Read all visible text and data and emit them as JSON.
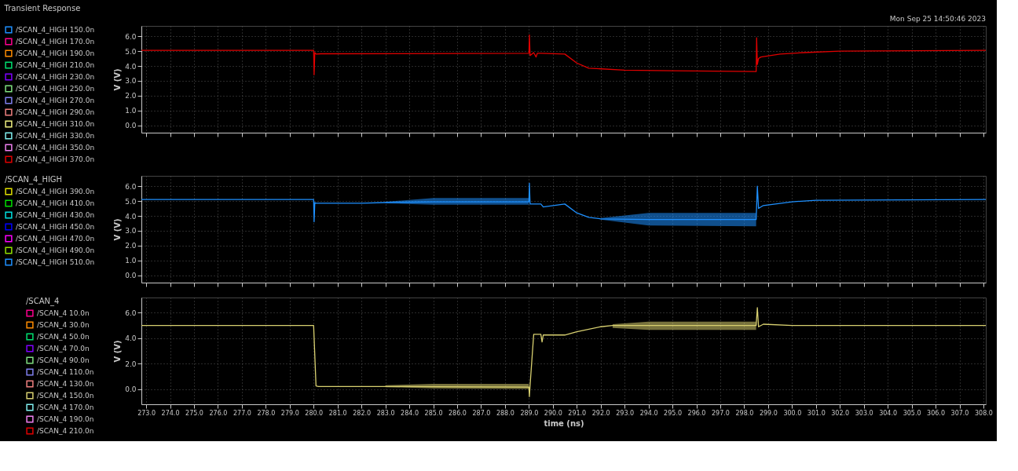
{
  "chart_data": [
    {
      "type": "line",
      "title": "Transient Response",
      "annotations": [
        "Mon Sep 25 14:50:46 2023"
      ],
      "ylabel": "V (V)",
      "tick_labels": "y",
      "grid": true,
      "legend": "left",
      "line_style": "solid",
      "xlim": [
        272.8,
        308.1
      ],
      "xticks": [
        {
          "value": 273,
          "label": null
        },
        {
          "value": 274,
          "label": null
        },
        {
          "value": 275,
          "label": null
        },
        {
          "value": 276,
          "label": null
        },
        {
          "value": 277,
          "label": null
        },
        {
          "value": 278,
          "label": null
        },
        {
          "value": 279,
          "label": null
        },
        {
          "value": 280,
          "label": null
        },
        {
          "value": 281,
          "label": null
        },
        {
          "value": 282,
          "label": null
        },
        {
          "value": 283,
          "label": null
        },
        {
          "value": 284,
          "label": null
        },
        {
          "value": 285,
          "label": null
        },
        {
          "value": 286,
          "label": null
        },
        {
          "value": 287,
          "label": null
        },
        {
          "value": 288,
          "label": null
        },
        {
          "value": 289,
          "label": null
        },
        {
          "value": 290,
          "label": null
        },
        {
          "value": 291,
          "label": null
        },
        {
          "value": 292,
          "label": null
        },
        {
          "value": 293,
          "label": null
        },
        {
          "value": 294,
          "label": null
        },
        {
          "value": 295,
          "label": null
        },
        {
          "value": 296,
          "label": null
        },
        {
          "value": 297,
          "label": null
        },
        {
          "value": 298,
          "label": null
        },
        {
          "value": 299,
          "label": null
        },
        {
          "value": 300,
          "label": null
        },
        {
          "value": 301,
          "label": null
        },
        {
          "value": 302,
          "label": null
        },
        {
          "value": 303,
          "label": null
        },
        {
          "value": 304,
          "label": null
        },
        {
          "value": 305,
          "label": null
        },
        {
          "value": 306,
          "label": null
        },
        {
          "value": 307,
          "label": null
        },
        {
          "value": 308,
          "label": null
        }
      ],
      "ylim": [
        -0.5,
        6.7
      ],
      "yticks": [
        {
          "value": 0,
          "label": "0.0"
        },
        {
          "value": 1,
          "label": "1.0"
        },
        {
          "value": 2,
          "label": "2.0"
        },
        {
          "value": 3,
          "label": "3.0"
        },
        {
          "value": 4,
          "label": "4.0"
        },
        {
          "value": 5,
          "label": "5.0"
        },
        {
          "value": 6,
          "label": "6.0"
        }
      ],
      "x": [
        272.8,
        280.0,
        280.02,
        280.05,
        280.1,
        280.3,
        289.0,
        289.02,
        289.05,
        289.2,
        289.3,
        289.35,
        289.5,
        290.5,
        291.0,
        291.5,
        293.0,
        295.0,
        298.5,
        298.52,
        298.55,
        298.6,
        298.7,
        299.5,
        300.5,
        302.0,
        308.1
      ],
      "series": [
        {
          "name": "/SCAN_4_HIGH   150.0n",
          "color": "#1e90ff",
          "values": [
            null,
            null,
            null,
            null,
            null,
            null,
            null,
            null,
            null,
            null,
            null,
            null,
            null,
            null,
            null,
            null,
            null,
            null,
            null,
            null,
            null,
            null,
            null,
            null,
            null,
            null,
            null
          ]
        },
        {
          "name": "/SCAN_4_HIGH   170.0n",
          "color": "#ff0090",
          "values": [
            null,
            null,
            null,
            null,
            null,
            null,
            null,
            null,
            null,
            null,
            null,
            null,
            null,
            null,
            null,
            null,
            null,
            null,
            null,
            null,
            null,
            null,
            null,
            null,
            null,
            null,
            null
          ]
        },
        {
          "name": "/SCAN_4_HIGH   190.0n",
          "color": "#ff8c00",
          "values": [
            null,
            null,
            null,
            null,
            null,
            null,
            null,
            null,
            null,
            null,
            null,
            null,
            null,
            null,
            null,
            null,
            null,
            null,
            null,
            null,
            null,
            null,
            null,
            null,
            null,
            null,
            null
          ]
        },
        {
          "name": "/SCAN_4_HIGH   210.0n",
          "color": "#00e070",
          "values": [
            null,
            null,
            null,
            null,
            null,
            null,
            null,
            null,
            null,
            null,
            null,
            null,
            null,
            null,
            null,
            null,
            null,
            null,
            null,
            null,
            null,
            null,
            null,
            null,
            null,
            null,
            null
          ]
        },
        {
          "name": "/SCAN_4_HIGH   230.0n",
          "color": "#8000ff",
          "values": [
            null,
            null,
            null,
            null,
            null,
            null,
            null,
            null,
            null,
            null,
            null,
            null,
            null,
            null,
            null,
            null,
            null,
            null,
            null,
            null,
            null,
            null,
            null,
            null,
            null,
            null,
            null
          ]
        },
        {
          "name": "/SCAN_4_HIGH   250.0n",
          "color": "#80e080",
          "values": [
            null,
            null,
            null,
            null,
            null,
            null,
            null,
            null,
            null,
            null,
            null,
            null,
            null,
            null,
            null,
            null,
            null,
            null,
            null,
            null,
            null,
            null,
            null,
            null,
            null,
            null,
            null
          ]
        },
        {
          "name": "/SCAN_4_HIGH   270.0n",
          "color": "#8080f0",
          "values": [
            null,
            null,
            null,
            null,
            null,
            null,
            null,
            null,
            null,
            null,
            null,
            null,
            null,
            null,
            null,
            null,
            null,
            null,
            null,
            null,
            null,
            null,
            null,
            null,
            null,
            null,
            null
          ]
        },
        {
          "name": "/SCAN_4_HIGH   290.0n",
          "color": "#f08080",
          "values": [
            null,
            null,
            null,
            null,
            null,
            null,
            null,
            null,
            null,
            null,
            null,
            null,
            null,
            null,
            null,
            null,
            null,
            null,
            null,
            null,
            null,
            null,
            null,
            null,
            null,
            null,
            null
          ]
        },
        {
          "name": "/SCAN_4_HIGH   310.0n",
          "color": "#f0f080",
          "values": [
            null,
            null,
            null,
            null,
            null,
            null,
            null,
            null,
            null,
            null,
            null,
            null,
            null,
            null,
            null,
            null,
            null,
            null,
            null,
            null,
            null,
            null,
            null,
            null,
            null,
            null,
            null
          ]
        },
        {
          "name": "/SCAN_4_HIGH   330.0n",
          "color": "#80f0f0",
          "values": [
            null,
            null,
            null,
            null,
            null,
            null,
            null,
            null,
            null,
            null,
            null,
            null,
            null,
            null,
            null,
            null,
            null,
            null,
            null,
            null,
            null,
            null,
            null,
            null,
            null,
            null,
            null
          ]
        },
        {
          "name": "/SCAN_4_HIGH   350.0n",
          "color": "#f080f0",
          "values": [
            null,
            null,
            null,
            null,
            null,
            null,
            null,
            null,
            null,
            null,
            null,
            null,
            null,
            null,
            null,
            null,
            null,
            null,
            null,
            null,
            null,
            null,
            null,
            null,
            null,
            null,
            null
          ]
        },
        {
          "name": "/SCAN_4_HIGH   370.0n",
          "color": "#e00000",
          "values": [
            5.05,
            5.05,
            3.4,
            4.9,
            4.8,
            4.82,
            4.85,
            6.1,
            4.7,
            4.9,
            4.6,
            4.85,
            4.85,
            4.8,
            4.2,
            3.85,
            3.72,
            3.68,
            3.62,
            5.9,
            4.1,
            4.5,
            4.6,
            4.8,
            4.9,
            5.0,
            5.05
          ]
        }
      ]
    },
    {
      "type": "line",
      "ylabel": "V (V)",
      "legend_title": "/SCAN_4_HIGH",
      "tick_labels": "y",
      "grid": true,
      "legend": "left",
      "line_style": "solid",
      "xlim": [
        272.8,
        308.1
      ],
      "xticks": [
        {
          "value": 273,
          "label": null
        },
        {
          "value": 274,
          "label": null
        },
        {
          "value": 275,
          "label": null
        },
        {
          "value": 276,
          "label": null
        },
        {
          "value": 277,
          "label": null
        },
        {
          "value": 278,
          "label": null
        },
        {
          "value": 279,
          "label": null
        },
        {
          "value": 280,
          "label": null
        },
        {
          "value": 281,
          "label": null
        },
        {
          "value": 282,
          "label": null
        },
        {
          "value": 283,
          "label": null
        },
        {
          "value": 284,
          "label": null
        },
        {
          "value": 285,
          "label": null
        },
        {
          "value": 286,
          "label": null
        },
        {
          "value": 287,
          "label": null
        },
        {
          "value": 288,
          "label": null
        },
        {
          "value": 289,
          "label": null
        },
        {
          "value": 290,
          "label": null
        },
        {
          "value": 291,
          "label": null
        },
        {
          "value": 292,
          "label": null
        },
        {
          "value": 293,
          "label": null
        },
        {
          "value": 294,
          "label": null
        },
        {
          "value": 295,
          "label": null
        },
        {
          "value": 296,
          "label": null
        },
        {
          "value": 297,
          "label": null
        },
        {
          "value": 298,
          "label": null
        },
        {
          "value": 299,
          "label": null
        },
        {
          "value": 300,
          "label": null
        },
        {
          "value": 301,
          "label": null
        },
        {
          "value": 302,
          "label": null
        },
        {
          "value": 303,
          "label": null
        },
        {
          "value": 304,
          "label": null
        },
        {
          "value": 305,
          "label": null
        },
        {
          "value": 306,
          "label": null
        },
        {
          "value": 307,
          "label": null
        },
        {
          "value": 308,
          "label": null
        }
      ],
      "ylim": [
        -0.5,
        6.7
      ],
      "yticks": [
        {
          "value": 0,
          "label": "0.0"
        },
        {
          "value": 1,
          "label": "1.0"
        },
        {
          "value": 2,
          "label": "2.0"
        },
        {
          "value": 3,
          "label": "3.0"
        },
        {
          "value": 4,
          "label": "4.0"
        },
        {
          "value": 5,
          "label": "5.0"
        },
        {
          "value": 6,
          "label": "6.0"
        }
      ],
      "x": [
        272.8,
        280.0,
        280.02,
        280.05,
        280.1,
        282.0,
        283.0,
        285.0,
        289.0,
        289.02,
        289.05,
        289.5,
        289.6,
        290.5,
        291.0,
        291.5,
        292.0,
        294.0,
        298.5,
        298.55,
        298.6,
        298.8,
        300.0,
        301.0,
        308.1
      ],
      "series": [
        {
          "name": "/SCAN_4_HIGH   390.0n",
          "color": "#e0e000",
          "values": [
            null,
            null,
            null,
            null,
            null,
            null,
            null,
            null,
            null,
            null,
            null,
            null,
            null,
            null,
            null,
            null,
            null,
            null,
            null,
            null,
            null,
            null,
            null,
            null,
            null
          ]
        },
        {
          "name": "/SCAN_4_HIGH   410.0n",
          "color": "#00e000",
          "values": [
            null,
            null,
            null,
            null,
            null,
            null,
            null,
            null,
            null,
            null,
            null,
            null,
            null,
            null,
            null,
            null,
            null,
            null,
            null,
            null,
            null,
            null,
            null,
            null,
            null
          ]
        },
        {
          "name": "/SCAN_4_HIGH   430.0n",
          "color": "#00e0e0",
          "values": [
            null,
            null,
            null,
            null,
            null,
            null,
            null,
            null,
            null,
            null,
            null,
            null,
            null,
            null,
            null,
            null,
            null,
            null,
            null,
            null,
            null,
            null,
            null,
            null,
            null
          ]
        },
        {
          "name": "/SCAN_4_HIGH   450.0n",
          "color": "#0000ff",
          "values": [
            null,
            null,
            null,
            null,
            null,
            null,
            null,
            null,
            null,
            null,
            null,
            null,
            null,
            null,
            null,
            null,
            null,
            null,
            null,
            null,
            null,
            null,
            null,
            null,
            null
          ]
        },
        {
          "name": "/SCAN_4_HIGH   470.0n",
          "color": "#ff00ff",
          "values": [
            null,
            null,
            null,
            null,
            null,
            null,
            null,
            null,
            null,
            null,
            null,
            null,
            null,
            null,
            null,
            null,
            null,
            null,
            null,
            null,
            null,
            null,
            null,
            null,
            null
          ]
        },
        {
          "name": "/SCAN_4_HIGH   490.0n",
          "color": "#90e000",
          "values": [
            null,
            null,
            null,
            null,
            null,
            null,
            null,
            null,
            null,
            null,
            null,
            null,
            null,
            null,
            null,
            null,
            null,
            null,
            null,
            null,
            null,
            null,
            null,
            null,
            null
          ]
        },
        {
          "name": "/SCAN_4_HIGH   510.0n",
          "color": "#1e90ff",
          "values": [
            5.1,
            5.1,
            3.6,
            4.9,
            4.85,
            4.85,
            4.9,
            4.95,
            4.95,
            6.2,
            4.8,
            4.8,
            4.6,
            4.8,
            4.2,
            3.9,
            3.8,
            3.75,
            3.75,
            6.0,
            4.5,
            4.7,
            4.95,
            5.05,
            5.1
          ],
          "lower": [
            null,
            null,
            null,
            null,
            null,
            null,
            4.85,
            4.75,
            4.75,
            null,
            null,
            null,
            null,
            null,
            null,
            null,
            3.75,
            3.35,
            3.3,
            null,
            null,
            null,
            null,
            null,
            null
          ],
          "upper": [
            null,
            null,
            null,
            null,
            null,
            null,
            4.95,
            5.2,
            5.2,
            null,
            null,
            null,
            null,
            null,
            null,
            null,
            3.85,
            4.2,
            4.2,
            null,
            null,
            null,
            null,
            null,
            null
          ]
        }
      ]
    },
    {
      "type": "line",
      "ylabel": "V (V)",
      "xlabel": "time (ns)",
      "legend_title": "/SCAN_4",
      "grid": true,
      "legend": "left",
      "line_style": "solid",
      "xlim": [
        272.8,
        308.1
      ],
      "xticks": [
        {
          "value": 273,
          "label": "273.0"
        },
        {
          "value": 274,
          "label": "274.0"
        },
        {
          "value": 275,
          "label": "275.0"
        },
        {
          "value": 276,
          "label": "276.0"
        },
        {
          "value": 277,
          "label": "277.0"
        },
        {
          "value": 278,
          "label": "278.0"
        },
        {
          "value": 279,
          "label": "279.0"
        },
        {
          "value": 280,
          "label": "280.0"
        },
        {
          "value": 281,
          "label": "281.0"
        },
        {
          "value": 282,
          "label": "282.0"
        },
        {
          "value": 283,
          "label": "283.0"
        },
        {
          "value": 284,
          "label": "284.0"
        },
        {
          "value": 285,
          "label": "285.0"
        },
        {
          "value": 286,
          "label": "286.0"
        },
        {
          "value": 287,
          "label": "287.0"
        },
        {
          "value": 288,
          "label": "288.0"
        },
        {
          "value": 289,
          "label": "289.0"
        },
        {
          "value": 290,
          "label": "290.0"
        },
        {
          "value": 291,
          "label": "291.0"
        },
        {
          "value": 292,
          "label": "292.0"
        },
        {
          "value": 293,
          "label": "293.0"
        },
        {
          "value": 294,
          "label": "294.0"
        },
        {
          "value": 295,
          "label": "295.0"
        },
        {
          "value": 296,
          "label": "296.0"
        },
        {
          "value": 297,
          "label": "297.0"
        },
        {
          "value": 298,
          "label": "298.0"
        },
        {
          "value": 299,
          "label": "299.0"
        },
        {
          "value": 300,
          "label": "300.0"
        },
        {
          "value": 301,
          "label": "301.0"
        },
        {
          "value": 302,
          "label": "302.0"
        },
        {
          "value": 303,
          "label": "303.0"
        },
        {
          "value": 304,
          "label": "304.0"
        },
        {
          "value": 305,
          "label": "305.0"
        },
        {
          "value": 306,
          "label": "306.0"
        },
        {
          "value": 307,
          "label": "307.0"
        },
        {
          "value": 308,
          "label": "308.0"
        }
      ],
      "ylim": [
        -1.2,
        7.2
      ],
      "yticks": [
        {
          "value": 0,
          "label": "0.0"
        },
        {
          "value": 2,
          "label": "2.0"
        },
        {
          "value": 4,
          "label": "4.0"
        },
        {
          "value": 6,
          "label": "6.0"
        }
      ],
      "x": [
        272.8,
        280.0,
        280.1,
        280.2,
        283.0,
        285.0,
        289.0,
        289.02,
        289.05,
        289.2,
        289.5,
        289.55,
        289.6,
        290.5,
        291.0,
        292.0,
        292.5,
        294.0,
        298.5,
        298.55,
        298.6,
        298.8,
        300.0,
        308.1
      ],
      "series": [
        {
          "name": "/SCAN_4   10.0n",
          "color": "#ff0090",
          "values": [
            null,
            null,
            null,
            null,
            null,
            null,
            null,
            null,
            null,
            null,
            null,
            null,
            null,
            null,
            null,
            null,
            null,
            null,
            null,
            null,
            null,
            null,
            null,
            null
          ]
        },
        {
          "name": "/SCAN_4   30.0n",
          "color": "#ff8c00",
          "values": [
            null,
            null,
            null,
            null,
            null,
            null,
            null,
            null,
            null,
            null,
            null,
            null,
            null,
            null,
            null,
            null,
            null,
            null,
            null,
            null,
            null,
            null,
            null,
            null
          ]
        },
        {
          "name": "/SCAN_4   50.0n",
          "color": "#00e070",
          "values": [
            null,
            null,
            null,
            null,
            null,
            null,
            null,
            null,
            null,
            null,
            null,
            null,
            null,
            null,
            null,
            null,
            null,
            null,
            null,
            null,
            null,
            null,
            null,
            null
          ]
        },
        {
          "name": "/SCAN_4   70.0n",
          "color": "#8000ff",
          "values": [
            null,
            null,
            null,
            null,
            null,
            null,
            null,
            null,
            null,
            null,
            null,
            null,
            null,
            null,
            null,
            null,
            null,
            null,
            null,
            null,
            null,
            null,
            null,
            null
          ]
        },
        {
          "name": "/SCAN_4   90.0n",
          "color": "#80e080",
          "values": [
            null,
            null,
            null,
            null,
            null,
            null,
            null,
            null,
            null,
            null,
            null,
            null,
            null,
            null,
            null,
            null,
            null,
            null,
            null,
            null,
            null,
            null,
            null,
            null
          ]
        },
        {
          "name": "/SCAN_4   110.0n",
          "color": "#8080f0",
          "values": [
            null,
            null,
            null,
            null,
            null,
            null,
            null,
            null,
            null,
            null,
            null,
            null,
            null,
            null,
            null,
            null,
            null,
            null,
            null,
            null,
            null,
            null,
            null,
            null
          ]
        },
        {
          "name": "/SCAN_4   130.0n",
          "color": "#f08080",
          "values": [
            null,
            null,
            null,
            null,
            null,
            null,
            null,
            null,
            null,
            null,
            null,
            null,
            null,
            null,
            null,
            null,
            null,
            null,
            null,
            null,
            null,
            null,
            null,
            null
          ]
        },
        {
          "name": "/SCAN_4   150.0n",
          "color": "#d8d070",
          "values": [
            5.0,
            5.0,
            0.25,
            0.2,
            0.2,
            0.18,
            0.15,
            -0.6,
            0.3,
            4.3,
            4.3,
            3.7,
            4.25,
            4.25,
            4.5,
            4.9,
            5.0,
            5.0,
            5.0,
            6.4,
            4.9,
            5.1,
            5.0,
            5.0
          ],
          "lower": [
            null,
            null,
            null,
            null,
            0.15,
            0.05,
            0.0,
            null,
            null,
            null,
            null,
            null,
            null,
            null,
            null,
            null,
            4.8,
            4.65,
            4.65,
            null,
            null,
            null,
            null,
            null
          ],
          "upper": [
            null,
            null,
            null,
            null,
            0.3,
            0.4,
            0.4,
            null,
            null,
            null,
            null,
            null,
            null,
            null,
            null,
            null,
            5.1,
            5.3,
            5.3,
            null,
            null,
            null,
            null,
            null
          ]
        },
        {
          "name": "/SCAN_4   170.0n",
          "color": "#80f0f0",
          "values": [
            null,
            null,
            null,
            null,
            null,
            null,
            null,
            null,
            null,
            null,
            null,
            null,
            null,
            null,
            null,
            null,
            null,
            null,
            null,
            null,
            null,
            null,
            null,
            null
          ]
        },
        {
          "name": "/SCAN_4   190.0n",
          "color": "#f080f0",
          "values": [
            null,
            null,
            null,
            null,
            null,
            null,
            null,
            null,
            null,
            null,
            null,
            null,
            null,
            null,
            null,
            null,
            null,
            null,
            null,
            null,
            null,
            null,
            null,
            null
          ]
        },
        {
          "name": "/SCAN_4   210.0n",
          "color": "#e00000",
          "values": [
            null,
            null,
            null,
            null,
            null,
            null,
            null,
            null,
            null,
            null,
            null,
            null,
            null,
            null,
            null,
            null,
            null,
            null,
            null,
            null,
            null,
            null,
            null,
            null
          ]
        }
      ]
    }
  ]
}
